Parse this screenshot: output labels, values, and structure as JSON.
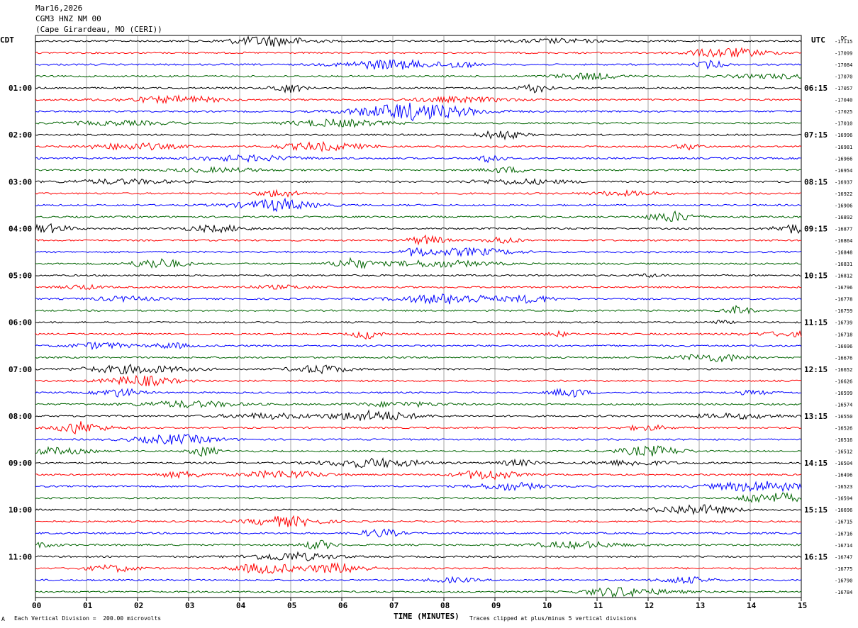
{
  "header": {
    "date": "Mar16,2026",
    "station": "CGM3 HNZ NM 00",
    "location": "(Cape Girardeau, MO (CERI))"
  },
  "axes": {
    "left_zone": "CDT",
    "right_zone": "UTC",
    "right_unit": "DC",
    "xlabel": "TIME (MINUTES)"
  },
  "footer": {
    "scale_note": "Each Vertical Division =  200.00 microvolts",
    "clip_note": "Traces clipped at plus/minus 5 vertical divisions",
    "corner_mark": "A"
  },
  "colors": {
    "trace_cycle": [
      "#000000",
      "#ff0000",
      "#0000ff",
      "#006400"
    ],
    "grid": "#808080"
  },
  "chart_data": {
    "type": "line",
    "title": "CGM3 HNZ NM 00",
    "xlabel": "TIME (MINUTES)",
    "x_ticks": [
      "00",
      "01",
      "02",
      "03",
      "04",
      "05",
      "06",
      "07",
      "08",
      "09",
      "10",
      "11",
      "12",
      "13",
      "14",
      "15"
    ],
    "xlim": [
      0,
      15
    ],
    "rows": 48,
    "left_labels": [
      "",
      "",
      "",
      "",
      "01:00",
      "",
      "",
      "",
      "02:00",
      "",
      "",
      "",
      "03:00",
      "",
      "",
      "",
      "04:00",
      "",
      "",
      "",
      "05:00",
      "",
      "",
      "",
      "06:00",
      "",
      "",
      "",
      "07:00",
      "",
      "",
      "",
      "08:00",
      "",
      "",
      "",
      "09:00",
      "",
      "",
      "",
      "10:00",
      "",
      "",
      "",
      "11:00",
      "",
      "",
      ""
    ],
    "right_labels": [
      "",
      "",
      "",
      "",
      "06:15",
      "",
      "",
      "",
      "07:15",
      "",
      "",
      "",
      "08:15",
      "",
      "",
      "",
      "09:15",
      "",
      "",
      "",
      "10:15",
      "",
      "",
      "",
      "11:15",
      "",
      "",
      "",
      "12:15",
      "",
      "",
      "",
      "13:15",
      "",
      "",
      "",
      "14:15",
      "",
      "",
      "",
      "15:15",
      "",
      "",
      "",
      "16:15",
      "",
      "",
      ""
    ],
    "dc_offsets": [
      -17115,
      -17099,
      -17084,
      -17070,
      -17057,
      -17040,
      -17025,
      -17010,
      -16996,
      -16981,
      -16966,
      -16954,
      -16937,
      -16922,
      -16906,
      -16892,
      -16877,
      -16864,
      -16848,
      -16831,
      -16812,
      -16796,
      -16778,
      -16759,
      -16739,
      -16718,
      -16696,
      -16676,
      -16652,
      -16626,
      -16599,
      -16574,
      -16550,
      -16526,
      -16516,
      -16512,
      -16504,
      -16496,
      -16523,
      -16594,
      -16696,
      -16715,
      -16716,
      -16714,
      -16747,
      -16775,
      -16790,
      -16784
    ],
    "scale_microvolts_per_division": 200.0,
    "clip_divisions": 5
  }
}
